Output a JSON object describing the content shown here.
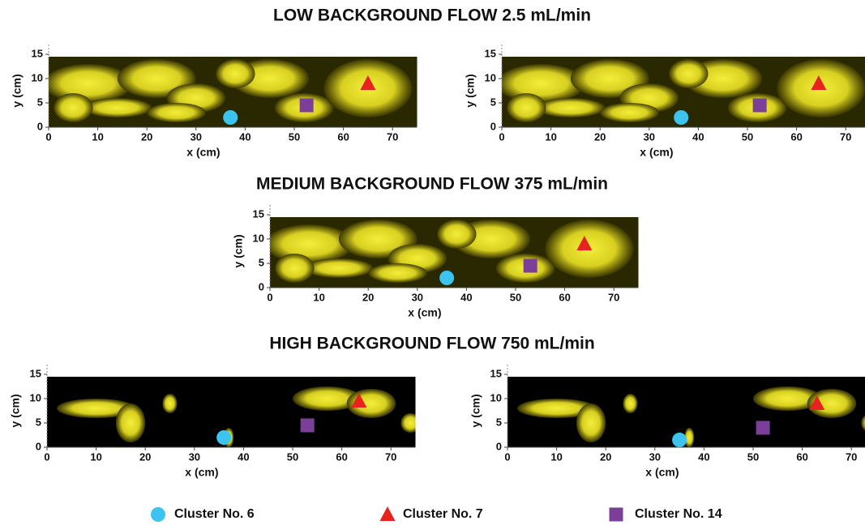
{
  "legend": [
    {
      "name": "Cluster No. 6",
      "color": "#3cc3f0",
      "shape": "circle"
    },
    {
      "name": "Cluster No. 7",
      "color": "#e8231f",
      "shape": "triangle"
    },
    {
      "name": "Cluster No. 14",
      "color": "#7b3f99",
      "shape": "square"
    }
  ],
  "chart_data": [
    {
      "type": "scatter",
      "title": "LOW BACKGROUND FLOW 2.5 mL/min",
      "xlabel": "x (cm)",
      "ylabel": "y (cm)",
      "xlim": [
        0,
        75
      ],
      "ylim": [
        0,
        17
      ],
      "xticks": [
        0,
        10,
        20,
        30,
        40,
        50,
        60,
        70
      ],
      "yticks": [
        0,
        5,
        10,
        15
      ],
      "series": [
        {
          "x": [
            37
          ],
          "y": [
            2
          ]
        },
        {
          "x": [
            65
          ],
          "y": [
            9
          ]
        },
        {
          "x": [
            52.5
          ],
          "y": [
            4.5
          ]
        }
      ]
    },
    {
      "type": "scatter",
      "xlabel": "x (cm)",
      "ylabel": "y (cm)",
      "xlim": [
        0,
        75
      ],
      "ylim": [
        0,
        17
      ],
      "xticks": [
        0,
        10,
        20,
        30,
        40,
        50,
        60,
        70
      ],
      "yticks": [
        0,
        5,
        10,
        15
      ],
      "series": [
        {
          "x": [
            36.5
          ],
          "y": [
            2
          ]
        },
        {
          "x": [
            64.5
          ],
          "y": [
            9
          ]
        },
        {
          "x": [
            52.5
          ],
          "y": [
            4.5
          ]
        }
      ]
    },
    {
      "type": "scatter",
      "title": "MEDIUM BACKGROUND FLOW 375 mL/min",
      "xlabel": "x (cm)",
      "ylabel": "y (cm)",
      "xlim": [
        0,
        75
      ],
      "ylim": [
        0,
        17
      ],
      "xticks": [
        0,
        10,
        20,
        30,
        40,
        50,
        60,
        70
      ],
      "yticks": [
        0,
        5,
        10,
        15
      ],
      "series": [
        {
          "x": [
            36
          ],
          "y": [
            2
          ]
        },
        {
          "x": [
            64
          ],
          "y": [
            9
          ]
        },
        {
          "x": [
            53
          ],
          "y": [
            4.5
          ]
        }
      ]
    },
    {
      "type": "scatter",
      "title": "HIGH BACKGROUND FLOW 750 mL/min",
      "xlabel": "x (cm)",
      "ylabel": "y (cm)",
      "xlim": [
        0,
        75
      ],
      "ylim": [
        0,
        17
      ],
      "xticks": [
        0,
        10,
        20,
        30,
        40,
        50,
        60,
        70
      ],
      "yticks": [
        0,
        5,
        10,
        15
      ],
      "series": [
        {
          "x": [
            36
          ],
          "y": [
            2
          ]
        },
        {
          "x": [
            63.5
          ],
          "y": [
            9.5
          ]
        },
        {
          "x": [
            53
          ],
          "y": [
            4.5
          ]
        }
      ]
    },
    {
      "type": "scatter",
      "xlabel": "x (cm)",
      "ylabel": "y (cm)",
      "xlim": [
        0,
        75
      ],
      "ylim": [
        0,
        17
      ],
      "xticks": [
        0,
        10,
        20,
        30,
        40,
        50,
        60,
        70
      ],
      "yticks": [
        0,
        5,
        10,
        15
      ],
      "series": [
        {
          "x": [
            35
          ],
          "y": [
            1.5
          ]
        },
        {
          "x": [
            63
          ],
          "y": [
            9
          ]
        },
        {
          "x": [
            52
          ],
          "y": [
            4
          ]
        }
      ]
    }
  ]
}
